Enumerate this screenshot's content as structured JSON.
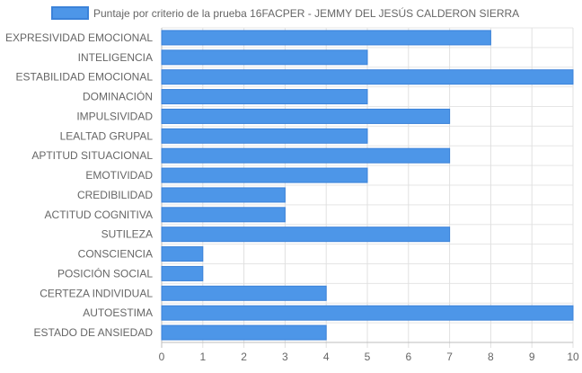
{
  "chart_data": {
    "type": "bar",
    "orientation": "horizontal",
    "categories": [
      "EXPRESIVIDAD EMOCIONAL",
      "INTELIGENCIA",
      "ESTABILIDAD EMOCIONAL",
      "DOMINACIÓN",
      "IMPULSIVIDAD",
      "LEALTAD GRUPAL",
      "APTITUD SITUACIONAL",
      "EMOTIVIDAD",
      "CREDIBILIDAD",
      "ACTITUD COGNITIVA",
      "SUTILEZA",
      "CONSCIENCIA",
      "POSICIÓN SOCIAL",
      "CERTEZA INDIVIDUAL",
      "AUTOESTIMA",
      "ESTADO DE ANSIEDAD"
    ],
    "series": [
      {
        "name": "Puntaje por criterio de la prueba 16FACPER - JEMMY DEL JESÚS CALDERON SIERRA",
        "values": [
          8,
          5,
          10,
          5,
          7,
          5,
          7,
          5,
          3,
          3,
          7,
          1,
          1,
          4,
          10,
          4
        ],
        "color": "#4d96e8",
        "border_color": "#3b82d9"
      }
    ],
    "x_ticks": [
      "0",
      "1",
      "2",
      "3",
      "4",
      "5",
      "6",
      "7",
      "8",
      "9",
      "10"
    ],
    "xlim": [
      0,
      10
    ],
    "grid": true,
    "legend_position": "top-center"
  }
}
